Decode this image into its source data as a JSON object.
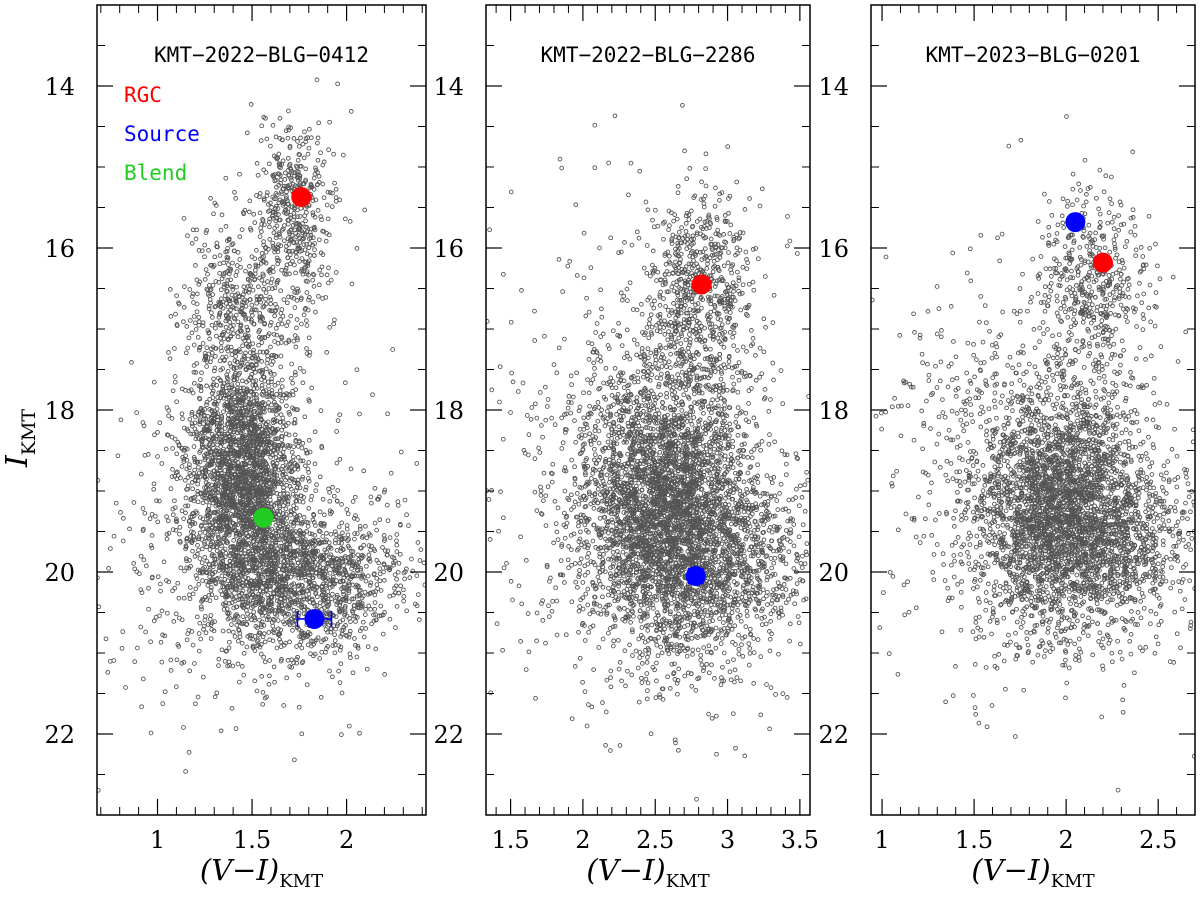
{
  "figure": {
    "ylabel_main": "I",
    "ylabel_sub": "KMT",
    "xlabel_main": "(V−I)",
    "xlabel_sub": "KMT"
  },
  "chart_data": [
    {
      "type": "scatter",
      "title": "KMT−2022−BLG−0412",
      "xlim": [
        0.68,
        2.42
      ],
      "ylim": [
        23.0,
        13.0
      ],
      "xticks_major": [
        1,
        1.5,
        2
      ],
      "xticks_minor": [
        0.7,
        0.8,
        0.9,
        1.1,
        1.2,
        1.3,
        1.4,
        1.6,
        1.7,
        1.8,
        1.9,
        2.1,
        2.2,
        2.3,
        2.4
      ],
      "yticks_major": [
        14,
        16,
        18,
        20,
        22
      ],
      "show_ytick_labels": true,
      "legend": [
        {
          "label": "RGC",
          "color": "#ff0000"
        },
        {
          "label": "Source",
          "color": "#0000ff"
        },
        {
          "label": "Blend",
          "color": "#22cc22"
        }
      ],
      "cloud": {
        "count": 5200,
        "seed": 11,
        "components": [
          {
            "w": 0.5,
            "x": 1.46,
            "y": 18.9,
            "sx": 0.15,
            "sy": 0.8,
            "rho": 0.1
          },
          {
            "w": 0.22,
            "x": 1.8,
            "y": 20.1,
            "sx": 0.25,
            "sy": 0.45,
            "rho": 0.0
          },
          {
            "w": 0.1,
            "x": 1.72,
            "y": 15.6,
            "sx": 0.12,
            "sy": 0.6,
            "rho": 0.0
          },
          {
            "w": 0.08,
            "x": 1.42,
            "y": 16.8,
            "sx": 0.16,
            "sy": 0.55,
            "rho": 0.0
          },
          {
            "w": 0.1,
            "x": 1.4,
            "y": 19.5,
            "sx": 0.4,
            "sy": 1.1,
            "rho": 0.0
          }
        ]
      },
      "points": [
        {
          "name": "RGC",
          "x": 1.76,
          "y": 15.37,
          "color": "#ff0000",
          "xerr": 0
        },
        {
          "name": "Source",
          "x": 1.83,
          "y": 20.58,
          "color": "#0000ff",
          "xerr": 0.09
        },
        {
          "name": "Blend",
          "x": 1.56,
          "y": 19.33,
          "color": "#22cc22",
          "xerr": 0
        }
      ]
    },
    {
      "type": "scatter",
      "title": "KMT−2022−BLG−2286",
      "xlim": [
        1.33,
        3.57
      ],
      "ylim": [
        23.0,
        13.0
      ],
      "xticks_major": [
        1.5,
        2,
        2.5,
        3,
        3.5
      ],
      "xticks_minor": [
        1.4,
        1.6,
        1.7,
        1.8,
        1.9,
        2.1,
        2.2,
        2.3,
        2.4,
        2.6,
        2.7,
        2.8,
        2.9,
        3.1,
        3.2,
        3.3,
        3.4
      ],
      "yticks_major": [
        14,
        16,
        18,
        20,
        22
      ],
      "show_ytick_labels": true,
      "cloud": {
        "count": 5600,
        "seed": 23,
        "components": [
          {
            "w": 0.55,
            "x": 2.55,
            "y": 19.2,
            "sx": 0.28,
            "sy": 0.85,
            "rho": 0.0
          },
          {
            "w": 0.18,
            "x": 3.0,
            "y": 19.8,
            "sx": 0.3,
            "sy": 0.6,
            "rho": 0.0
          },
          {
            "w": 0.12,
            "x": 2.8,
            "y": 16.6,
            "sx": 0.18,
            "sy": 0.7,
            "rho": 0.0
          },
          {
            "w": 0.15,
            "x": 2.4,
            "y": 18.5,
            "sx": 0.55,
            "sy": 1.5,
            "rho": 0.0
          }
        ]
      },
      "points": [
        {
          "name": "RGC",
          "x": 2.82,
          "y": 16.45,
          "color": "#ff0000",
          "xerr": 0
        },
        {
          "name": "Source",
          "x": 2.78,
          "y": 20.05,
          "color": "#0000ff",
          "xerr": 0.05
        }
      ]
    },
    {
      "type": "scatter",
      "title": "KMT−2023−BLG−0201",
      "xlim": [
        0.94,
        2.7
      ],
      "ylim": [
        23.0,
        13.0
      ],
      "xticks_major": [
        1,
        1.5,
        2,
        2.5
      ],
      "xticks_minor": [
        1.1,
        1.2,
        1.3,
        1.4,
        1.6,
        1.7,
        1.8,
        1.9,
        2.1,
        2.2,
        2.3,
        2.4,
        2.6,
        2.7
      ],
      "yticks_major": [
        14,
        16,
        18,
        20,
        22
      ],
      "show_ytick_labels": true,
      "cloud": {
        "count": 4600,
        "seed": 37,
        "components": [
          {
            "w": 0.55,
            "x": 1.95,
            "y": 19.2,
            "sx": 0.22,
            "sy": 0.75,
            "rho": 0.0
          },
          {
            "w": 0.18,
            "x": 2.25,
            "y": 19.6,
            "sx": 0.25,
            "sy": 0.55,
            "rho": 0.0
          },
          {
            "w": 0.1,
            "x": 2.15,
            "y": 16.4,
            "sx": 0.15,
            "sy": 0.55,
            "rho": 0.0
          },
          {
            "w": 0.17,
            "x": 1.8,
            "y": 18.6,
            "sx": 0.45,
            "sy": 1.3,
            "rho": 0.0
          }
        ]
      },
      "points": [
        {
          "name": "Source",
          "x": 2.05,
          "y": 15.68,
          "color": "#0000ff",
          "xerr": 0
        },
        {
          "name": "RGC",
          "x": 2.2,
          "y": 16.18,
          "color": "#ff0000",
          "xerr": 0
        }
      ]
    }
  ]
}
